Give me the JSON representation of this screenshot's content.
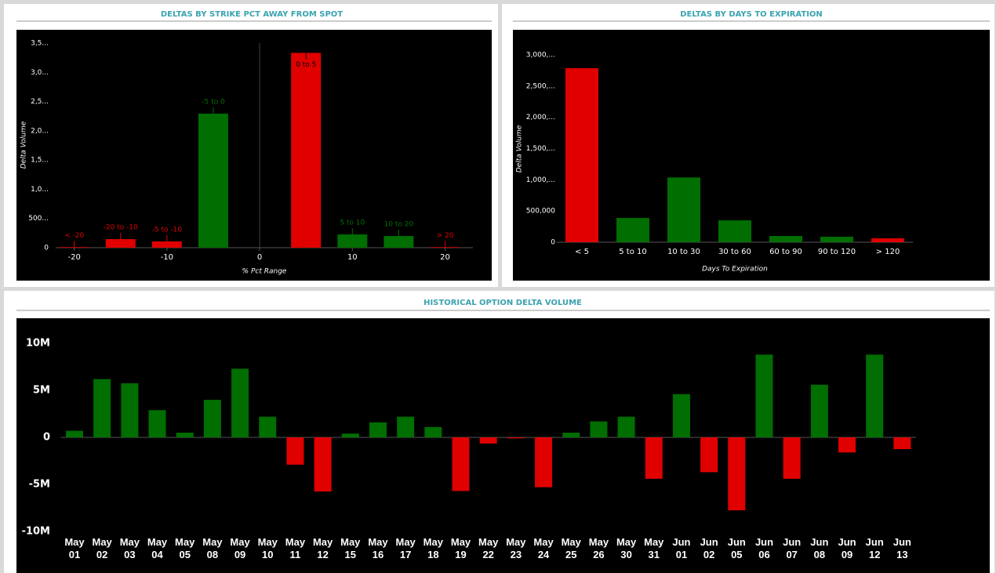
{
  "chart_data": [
    {
      "type": "bar",
      "title": "DELTAS BY STRIKE PCT AWAY FROM SPOT",
      "x_label": "% Pct Range",
      "y_label": "Delta Volume",
      "x": [
        -20,
        -15,
        -10,
        -5,
        5,
        10,
        15,
        20
      ],
      "labels": [
        "< -20",
        "-20 to -10",
        "-5 to -10",
        "-5 to 0",
        "0 to 5",
        "5 to 10",
        "10 to 20",
        "> 20"
      ],
      "values": [
        10000,
        147000,
        107000,
        2293000,
        3333000,
        227000,
        200000,
        10000
      ],
      "colors": [
        "#e00000",
        "#e00000",
        "#e00000",
        "#006e00",
        "#e00000",
        "#006e00",
        "#006e00",
        "#e00000"
      ],
      "xlim": [
        -22,
        23
      ],
      "xticks": [
        -20,
        -10,
        0,
        10,
        20
      ],
      "ylim": [
        0,
        3500000
      ],
      "yticks": [
        0,
        {
          "value": 500000,
          "label": "500..."
        },
        {
          "value": 1000000,
          "label": "1,0..."
        },
        {
          "value": 1500000,
          "label": "1,5..."
        },
        {
          "value": 2000000,
          "label": "2,0..."
        },
        {
          "value": 2500000,
          "label": "2,5..."
        },
        {
          "value": 3000000,
          "label": "3,0..."
        },
        {
          "value": 3500000,
          "label": "3,5..."
        }
      ]
    },
    {
      "type": "bar",
      "title": "DELTAS BY DAYS TO EXPIRATION",
      "x_label": "Days To Expiration",
      "y_label": "Delta Volume",
      "categories": [
        "< 5",
        "5 to 10",
        "10 to 30",
        "30 to 60",
        "60 to 90",
        "90 to 120",
        "> 120"
      ],
      "values": [
        2787000,
        388000,
        1037000,
        350000,
        100000,
        87000,
        62000
      ],
      "colors": [
        "#e00000",
        "#006e00",
        "#006e00",
        "#006e00",
        "#006e00",
        "#006e00",
        "#e00000"
      ],
      "ylim": [
        0,
        3000000
      ],
      "yticks": [
        0,
        {
          "value": 500000,
          "label": "500,000"
        },
        {
          "value": 1000000,
          "label": "1,000,..."
        },
        {
          "value": 1500000,
          "label": "1,500,..."
        },
        {
          "value": 2000000,
          "label": "2,000,..."
        },
        {
          "value": 2500000,
          "label": "2,500,..."
        },
        {
          "value": 3000000,
          "label": "3,000,..."
        }
      ]
    },
    {
      "type": "bar",
      "title": "HISTORICAL OPTION DELTA VOLUME",
      "categories": [
        "May 01",
        "May 02",
        "May 03",
        "May 04",
        "May 05",
        "May 08",
        "May 09",
        "May 10",
        "May 11",
        "May 12",
        "May 15",
        "May 16",
        "May 17",
        "May 18",
        "May 19",
        "May 22",
        "May 23",
        "May 24",
        "May 25",
        "May 26",
        "May 30",
        "May 31",
        "Jun 01",
        "Jun 02",
        "Jun 05",
        "Jun 06",
        "Jun 07",
        "Jun 08",
        "Jun 09",
        "Jun 12",
        "Jun 13"
      ],
      "values": [
        700000,
        6200000,
        5750000,
        2900000,
        500000,
        4000000,
        7300000,
        2200000,
        -2900000,
        -5750000,
        400000,
        1600000,
        2200000,
        1100000,
        -5700000,
        -650000,
        -100000,
        -5300000,
        500000,
        1700000,
        2200000,
        -4400000,
        4600000,
        -3700000,
        -7750000,
        8800000,
        -4400000,
        5600000,
        -1600000,
        8800000,
        -1250000
      ],
      "colors": {
        "positive": "#006e00",
        "negative": "#e00000"
      },
      "ylim": [
        -10000000,
        10000000
      ],
      "yticks": [
        {
          "value": -10000000,
          "label": "-10M"
        },
        {
          "value": -5000000,
          "label": "-5M"
        },
        0,
        {
          "value": 5000000,
          "label": "5M"
        },
        {
          "value": 10000000,
          "label": "10M"
        }
      ]
    }
  ]
}
